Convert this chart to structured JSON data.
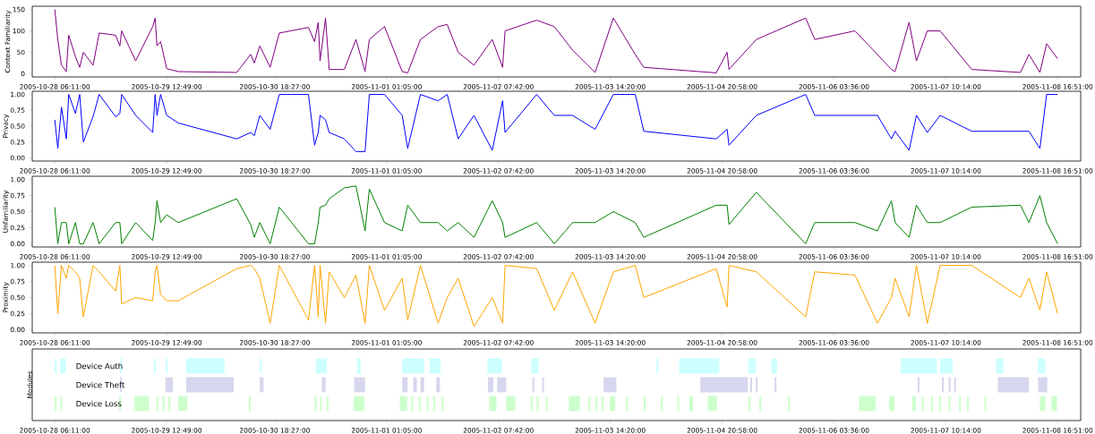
{
  "chart_data": [
    {
      "type": "line",
      "ylabel": "Context Familiarity",
      "xlim": [
        "2005-10-28T00:00",
        "2005-11-08T23:10"
      ],
      "ylim": [
        -7.5,
        157.5
      ],
      "yticks": [
        0,
        50,
        100,
        150
      ],
      "xticks": [
        {
          "value": "2005-10-28T06:11",
          "label": "2005-10-28 06:11:00"
        },
        {
          "value": "2005-10-29T12:49",
          "label": "2005-10-29 12:49:00"
        },
        {
          "value": "2005-10-30T18:27",
          "label": "2005-10-30 18:27:00"
        },
        {
          "value": "2005-11-01T01:05",
          "label": "2005-11-01 01:05:00"
        },
        {
          "value": "2005-11-02T07:42",
          "label": "2005-11-02 07:42:00"
        },
        {
          "value": "2005-11-03T14:20",
          "label": "2005-11-03 14:20:00"
        },
        {
          "value": "2005-11-04T20:58",
          "label": "2005-11-04 20:58:00"
        },
        {
          "value": "2005-11-06T03:36",
          "label": "2005-11-06 03:36:00"
        },
        {
          "value": "2005-11-07T10:14",
          "label": "2005-11-07 10:14:00"
        },
        {
          "value": "2005-11-08T16:51",
          "label": "2005-11-08 16:51:00"
        }
      ],
      "x": [
        "2005-10-28T06:11",
        "2005-10-28T07:00",
        "2005-10-28T08:00",
        "2005-10-28T09:20",
        "2005-10-28T10:00",
        "2005-10-28T11:50",
        "2005-10-28T13:00",
        "2005-10-28T14:00",
        "2005-10-28T16:40",
        "2005-10-28T18:20",
        "2005-10-28T22:50",
        "2005-10-29T00:00",
        "2005-10-29T00:30",
        "2005-10-29T04:20",
        "2005-10-29T09:00",
        "2005-10-29T09:40",
        "2005-10-29T10:10",
        "2005-10-29T11:10",
        "2005-10-29T12:50",
        "2005-10-29T16:00",
        "2005-10-30T08:00",
        "2005-10-30T11:50",
        "2005-10-30T12:50",
        "2005-10-30T14:20",
        "2005-10-30T17:10",
        "2005-10-30T19:40",
        "2005-10-31T03:40",
        "2005-10-31T05:20",
        "2005-10-31T06:20",
        "2005-10-31T06:50",
        "2005-10-31T08:20",
        "2005-10-31T09:20",
        "2005-10-31T13:30",
        "2005-10-31T16:40",
        "2005-10-31T19:10",
        "2005-10-31T20:20",
        "2005-11-01T00:30",
        "2005-11-01T05:20",
        "2005-11-01T06:50",
        "2005-11-01T10:20",
        "2005-11-01T15:10",
        "2005-11-01T17:40",
        "2005-11-01T20:40",
        "2005-11-02T01:00",
        "2005-11-02T06:00",
        "2005-11-02T08:50",
        "2005-11-02T09:30",
        "2005-11-02T18:10",
        "2005-11-02T23:00",
        "2005-11-03T04:00",
        "2005-11-03T10:10",
        "2005-11-03T15:10",
        "2005-11-03T21:10",
        "2005-11-03T23:30",
        "2005-11-04T19:20",
        "2005-11-04T22:20",
        "2005-11-04T22:50",
        "2005-11-05T06:20",
        "2005-11-05T19:50",
        "2005-11-05T22:20",
        "2005-11-06T09:20",
        "2005-11-06T15:30",
        "2005-11-06T19:20",
        "2005-11-06T20:20",
        "2005-11-07T00:10",
        "2005-11-07T02:10",
        "2005-11-07T05:10",
        "2005-11-07T08:40",
        "2005-11-07T17:20",
        "2005-11-08T06:40",
        "2005-11-08T09:00",
        "2005-11-08T12:00",
        "2005-11-08T13:50",
        "2005-11-08T16:51"
      ],
      "series": [
        {
          "color": "#800080",
          "values": [
            150,
            80,
            20,
            5,
            90,
            40,
            15,
            50,
            20,
            95,
            90,
            65,
            100,
            30,
            110,
            130,
            65,
            75,
            12,
            5,
            3,
            45,
            25,
            65,
            15,
            95,
            108,
            75,
            120,
            30,
            130,
            10,
            10,
            80,
            5,
            80,
            110,
            5,
            2,
            80,
            110,
            115,
            50,
            20,
            80,
            15,
            100,
            125,
            110,
            55,
            3,
            130,
            45,
            15,
            2,
            50,
            10,
            80,
            130,
            80,
            100,
            45,
            10,
            5,
            120,
            30,
            100,
            100,
            10,
            3,
            45,
            3,
            70,
            35
          ]
        }
      ]
    },
    {
      "type": "line",
      "ylabel": "Privacy",
      "xlim": [
        "2005-10-28T00:00",
        "2005-11-08T23:10"
      ],
      "ylim": [
        -0.05,
        1.05
      ],
      "yticks": [
        {
          "value": 0,
          "label": "0.00"
        },
        {
          "value": 0.25,
          "label": "0.25"
        },
        {
          "value": 0.5,
          "label": "0.50"
        },
        {
          "value": 0.75,
          "label": "0.75"
        },
        {
          "value": 1,
          "label": "1.00"
        }
      ],
      "xticks": [
        {
          "value": "2005-10-28T06:11",
          "label": "2005-10-28 06:11:00"
        },
        {
          "value": "2005-10-29T12:49",
          "label": "2005-10-29 12:49:00"
        },
        {
          "value": "2005-10-30T18:27",
          "label": "2005-10-30 18:27:00"
        },
        {
          "value": "2005-11-01T01:05",
          "label": "2005-11-01 01:05:00"
        },
        {
          "value": "2005-11-02T07:42",
          "label": "2005-11-02 07:42:00"
        },
        {
          "value": "2005-11-03T14:20",
          "label": "2005-11-03 14:20:00"
        },
        {
          "value": "2005-11-04T20:58",
          "label": "2005-11-04 20:58:00"
        },
        {
          "value": "2005-11-06T03:36",
          "label": "2005-11-06 03:36:00"
        },
        {
          "value": "2005-11-07T10:14",
          "label": "2005-11-07 10:14:00"
        },
        {
          "value": "2005-11-08T16:51",
          "label": "2005-11-08 16:51:00"
        }
      ],
      "x": [
        "2005-10-28T06:11",
        "2005-10-28T07:00",
        "2005-10-28T08:00",
        "2005-10-28T09:20",
        "2005-10-28T10:00",
        "2005-10-28T11:50",
        "2005-10-28T13:00",
        "2005-10-28T14:00",
        "2005-10-28T16:40",
        "2005-10-28T18:20",
        "2005-10-28T22:50",
        "2005-10-29T00:00",
        "2005-10-29T00:30",
        "2005-10-29T04:20",
        "2005-10-29T09:00",
        "2005-10-29T09:40",
        "2005-10-29T10:10",
        "2005-10-29T11:10",
        "2005-10-29T12:50",
        "2005-10-29T16:00",
        "2005-10-30T08:00",
        "2005-10-30T11:50",
        "2005-10-30T12:50",
        "2005-10-30T14:20",
        "2005-10-30T17:10",
        "2005-10-30T19:40",
        "2005-10-31T03:40",
        "2005-10-31T05:20",
        "2005-10-31T06:20",
        "2005-10-31T06:50",
        "2005-10-31T08:20",
        "2005-10-31T09:20",
        "2005-10-31T13:30",
        "2005-10-31T16:40",
        "2005-10-31T19:10",
        "2005-10-31T20:20",
        "2005-11-01T00:30",
        "2005-11-01T05:20",
        "2005-11-01T06:50",
        "2005-11-01T10:20",
        "2005-11-01T15:10",
        "2005-11-01T17:40",
        "2005-11-01T20:40",
        "2005-11-02T01:00",
        "2005-11-02T06:00",
        "2005-11-02T08:50",
        "2005-11-02T09:30",
        "2005-11-02T18:10",
        "2005-11-02T23:00",
        "2005-11-03T04:00",
        "2005-11-03T10:10",
        "2005-11-03T15:10",
        "2005-11-03T21:10",
        "2005-11-03T23:30",
        "2005-11-04T19:20",
        "2005-11-04T22:20",
        "2005-11-04T22:50",
        "2005-11-05T06:20",
        "2005-11-05T19:50",
        "2005-11-05T22:20",
        "2005-11-06T09:20",
        "2005-11-06T15:30",
        "2005-11-06T19:20",
        "2005-11-06T20:20",
        "2005-11-07T00:10",
        "2005-11-07T02:10",
        "2005-11-07T05:10",
        "2005-11-07T08:40",
        "2005-11-07T17:20",
        "2005-11-08T06:40",
        "2005-11-08T09:00",
        "2005-11-08T12:00",
        "2005-11-08T13:50",
        "2005-11-08T16:51"
      ],
      "series": [
        {
          "color": "#0000ff",
          "values": [
            0.6,
            0.15,
            0.8,
            0.3,
            1.0,
            0.7,
            1.0,
            0.25,
            0.65,
            1.0,
            0.65,
            0.7,
            1.0,
            0.67,
            0.4,
            1.0,
            0.67,
            1.0,
            0.67,
            0.55,
            0.3,
            0.4,
            0.35,
            0.67,
            0.45,
            1.0,
            1.0,
            0.2,
            0.4,
            0.67,
            0.6,
            0.4,
            0.3,
            0.1,
            0.1,
            1.0,
            1.0,
            0.67,
            0.15,
            1.0,
            0.9,
            1.0,
            0.3,
            0.67,
            0.12,
            0.9,
            0.4,
            1.0,
            0.67,
            0.67,
            0.45,
            1.0,
            1.0,
            0.42,
            0.3,
            0.45,
            0.2,
            0.67,
            1.0,
            0.67,
            0.67,
            0.67,
            0.3,
            0.42,
            0.12,
            0.67,
            0.4,
            0.67,
            0.42,
            0.42,
            0.42,
            0.15,
            1.0,
            1.0
          ]
        }
      ]
    },
    {
      "type": "line",
      "ylabel": "Unfamiliarity",
      "xlim": [
        "2005-10-28T00:00",
        "2005-11-08T23:10"
      ],
      "ylim": [
        -0.05,
        1.05
      ],
      "yticks": [
        {
          "value": 0,
          "label": "0.00"
        },
        {
          "value": 0.25,
          "label": "0.25"
        },
        {
          "value": 0.5,
          "label": "0.50"
        },
        {
          "value": 0.75,
          "label": "0.75"
        },
        {
          "value": 1,
          "label": "1.00"
        }
      ],
      "xticks": [
        {
          "value": "2005-10-28T06:11",
          "label": "2005-10-28 06:11:00"
        },
        {
          "value": "2005-10-29T12:49",
          "label": "2005-10-29 12:49:00"
        },
        {
          "value": "2005-10-30T18:27",
          "label": "2005-10-30 18:27:00"
        },
        {
          "value": "2005-11-01T01:05",
          "label": "2005-11-01 01:05:00"
        },
        {
          "value": "2005-11-02T07:42",
          "label": "2005-11-02 07:42:00"
        },
        {
          "value": "2005-11-03T14:20",
          "label": "2005-11-03 14:20:00"
        },
        {
          "value": "2005-11-04T20:58",
          "label": "2005-11-04 20:58:00"
        },
        {
          "value": "2005-11-06T03:36",
          "label": "2005-11-06 03:36:00"
        },
        {
          "value": "2005-11-07T10:14",
          "label": "2005-11-07 10:14:00"
        },
        {
          "value": "2005-11-08T16:51",
          "label": "2005-11-08 16:51:00"
        }
      ],
      "x": [
        "2005-10-28T06:11",
        "2005-10-28T07:00",
        "2005-10-28T08:00",
        "2005-10-28T09:20",
        "2005-10-28T10:00",
        "2005-10-28T11:50",
        "2005-10-28T13:00",
        "2005-10-28T14:00",
        "2005-10-28T16:40",
        "2005-10-28T18:20",
        "2005-10-28T22:50",
        "2005-10-29T00:00",
        "2005-10-29T00:30",
        "2005-10-29T04:20",
        "2005-10-29T09:00",
        "2005-10-29T09:40",
        "2005-10-29T10:10",
        "2005-10-29T11:10",
        "2005-10-29T12:50",
        "2005-10-29T16:00",
        "2005-10-30T08:00",
        "2005-10-30T11:50",
        "2005-10-30T12:50",
        "2005-10-30T14:20",
        "2005-10-30T17:10",
        "2005-10-30T19:40",
        "2005-10-31T03:40",
        "2005-10-31T05:20",
        "2005-10-31T06:20",
        "2005-10-31T06:50",
        "2005-10-31T08:20",
        "2005-10-31T09:20",
        "2005-10-31T13:30",
        "2005-10-31T16:40",
        "2005-10-31T19:10",
        "2005-10-31T20:20",
        "2005-11-01T00:30",
        "2005-11-01T05:20",
        "2005-11-01T06:50",
        "2005-11-01T10:20",
        "2005-11-01T15:10",
        "2005-11-01T17:40",
        "2005-11-01T20:40",
        "2005-11-02T01:00",
        "2005-11-02T06:00",
        "2005-11-02T08:50",
        "2005-11-02T09:30",
        "2005-11-02T18:10",
        "2005-11-02T23:00",
        "2005-11-03T04:00",
        "2005-11-03T10:10",
        "2005-11-03T15:10",
        "2005-11-03T21:10",
        "2005-11-03T23:30",
        "2005-11-04T19:20",
        "2005-11-04T22:20",
        "2005-11-04T22:50",
        "2005-11-05T06:20",
        "2005-11-05T19:50",
        "2005-11-05T22:20",
        "2005-11-06T09:20",
        "2005-11-06T15:30",
        "2005-11-06T19:20",
        "2005-11-06T20:20",
        "2005-11-07T00:10",
        "2005-11-07T02:10",
        "2005-11-07T05:10",
        "2005-11-07T08:40",
        "2005-11-07T17:20",
        "2005-11-08T06:40",
        "2005-11-08T09:00",
        "2005-11-08T12:00",
        "2005-11-08T13:50",
        "2005-11-08T16:51"
      ],
      "series": [
        {
          "color": "#008000",
          "values": [
            0.57,
            0,
            0.33,
            0.33,
            0,
            0.33,
            0,
            0,
            0.33,
            0,
            0.33,
            0.33,
            0,
            0.33,
            0.05,
            0.33,
            0.67,
            0.33,
            0.45,
            0.33,
            0.7,
            0.3,
            0.1,
            0.33,
            0,
            0.57,
            0,
            0,
            0.33,
            0.57,
            0.6,
            0.7,
            0.87,
            0.9,
            0.2,
            0.85,
            0.33,
            0.2,
            0.6,
            0.33,
            0.33,
            0.2,
            0.33,
            0.1,
            0.67,
            0.33,
            0.1,
            0.33,
            0,
            0.33,
            0.33,
            0.5,
            0.33,
            0.1,
            0.6,
            0.6,
            0.3,
            0.8,
            0,
            0.33,
            0.33,
            0.2,
            0.67,
            0.33,
            0.1,
            0.6,
            0.33,
            0.33,
            0.57,
            0.6,
            0.33,
            0.75,
            0.33,
            0
          ]
        }
      ]
    },
    {
      "type": "line",
      "ylabel": "Proximity",
      "xlim": [
        "2005-10-28T00:00",
        "2005-11-08T23:10"
      ],
      "ylim": [
        -0.05,
        1.05
      ],
      "yticks": [
        {
          "value": 0,
          "label": "0.00"
        },
        {
          "value": 0.25,
          "label": "0.25"
        },
        {
          "value": 0.5,
          "label": "0.50"
        },
        {
          "value": 0.75,
          "label": "0.75"
        },
        {
          "value": 1,
          "label": "1.00"
        }
      ],
      "xticks": [
        {
          "value": "2005-10-28T06:11",
          "label": "2005-10-28 06:11:00"
        },
        {
          "value": "2005-10-29T12:49",
          "label": "2005-10-29 12:49:00"
        },
        {
          "value": "2005-10-30T18:27",
          "label": "2005-10-30 18:27:00"
        },
        {
          "value": "2005-11-01T01:05",
          "label": "2005-11-01 01:05:00"
        },
        {
          "value": "2005-11-02T07:42",
          "label": "2005-11-02 07:42:00"
        },
        {
          "value": "2005-11-03T14:20",
          "label": "2005-11-03 14:20:00"
        },
        {
          "value": "2005-11-04T20:58",
          "label": "2005-11-04 20:58:00"
        },
        {
          "value": "2005-11-06T03:36",
          "label": "2005-11-06 03:36:00"
        },
        {
          "value": "2005-11-07T10:14",
          "label": "2005-11-07 10:14:00"
        },
        {
          "value": "2005-11-08T16:51",
          "label": "2005-11-08 16:51:00"
        }
      ],
      "x": [
        "2005-10-28T06:11",
        "2005-10-28T07:00",
        "2005-10-28T08:00",
        "2005-10-28T09:20",
        "2005-10-28T10:00",
        "2005-10-28T11:50",
        "2005-10-28T13:00",
        "2005-10-28T14:00",
        "2005-10-28T16:40",
        "2005-10-28T18:20",
        "2005-10-28T22:50",
        "2005-10-29T00:00",
        "2005-10-29T00:30",
        "2005-10-29T04:20",
        "2005-10-29T09:00",
        "2005-10-29T09:40",
        "2005-10-29T10:10",
        "2005-10-29T11:10",
        "2005-10-29T12:50",
        "2005-10-29T16:00",
        "2005-10-30T08:00",
        "2005-10-30T11:50",
        "2005-10-30T12:50",
        "2005-10-30T14:20",
        "2005-10-30T17:10",
        "2005-10-30T19:40",
        "2005-10-31T03:40",
        "2005-10-31T05:20",
        "2005-10-31T06:20",
        "2005-10-31T06:50",
        "2005-10-31T08:20",
        "2005-10-31T09:20",
        "2005-10-31T13:30",
        "2005-10-31T16:40",
        "2005-10-31T19:10",
        "2005-10-31T20:20",
        "2005-11-01T00:30",
        "2005-11-01T05:20",
        "2005-11-01T06:50",
        "2005-11-01T10:20",
        "2005-11-01T15:10",
        "2005-11-01T17:40",
        "2005-11-01T20:40",
        "2005-11-02T01:00",
        "2005-11-02T06:00",
        "2005-11-02T08:50",
        "2005-11-02T09:30",
        "2005-11-02T18:10",
        "2005-11-02T23:00",
        "2005-11-03T04:00",
        "2005-11-03T10:10",
        "2005-11-03T15:10",
        "2005-11-03T21:10",
        "2005-11-03T23:30",
        "2005-11-04T19:20",
        "2005-11-04T22:20",
        "2005-11-04T22:50",
        "2005-11-05T06:20",
        "2005-11-05T19:50",
        "2005-11-05T22:20",
        "2005-11-06T09:20",
        "2005-11-06T15:30",
        "2005-11-06T19:20",
        "2005-11-06T20:20",
        "2005-11-07T00:10",
        "2005-11-07T02:10",
        "2005-11-07T05:10",
        "2005-11-07T08:40",
        "2005-11-07T17:20",
        "2005-11-08T06:40",
        "2005-11-08T09:00",
        "2005-11-08T12:00",
        "2005-11-08T13:50",
        "2005-11-08T16:51"
      ],
      "series": [
        {
          "color": "#ffa500",
          "values": [
            1.0,
            0.25,
            1.0,
            0.8,
            1.0,
            0.9,
            0.8,
            0.2,
            1.0,
            0.9,
            0.6,
            1.0,
            0.4,
            0.5,
            0.45,
            0.9,
            1.0,
            0.55,
            0.45,
            0.45,
            0.95,
            1.0,
            0.95,
            0.8,
            0.1,
            1.0,
            0.15,
            1.0,
            0.2,
            1.0,
            0.1,
            0.9,
            0.5,
            0.85,
            0.1,
            1.0,
            0.3,
            0.8,
            0.15,
            1.0,
            0.1,
            0.5,
            0.8,
            0.05,
            0.5,
            0.1,
            1.0,
            0.95,
            0.3,
            0.9,
            0.1,
            0.9,
            1.0,
            0.5,
            0.95,
            0.35,
            1.0,
            0.9,
            0.2,
            0.9,
            0.85,
            0.1,
            0.5,
            0.8,
            0.2,
            1.0,
            0.1,
            1.0,
            1.0,
            0.5,
            0.8,
            0.3,
            0.9,
            0.25
          ]
        }
      ]
    },
    {
      "type": "bar",
      "orientation": "horizontal",
      "ylabel": "Modules",
      "tick_labels": "x",
      "categories": [
        "Device Auth",
        "Device Theft",
        "Device Loss"
      ],
      "colors": [
        "#ccffff",
        "#d6d6ee",
        "#ccffcc"
      ],
      "xlim": [
        "2005-10-28T00:00",
        "2005-11-08T23:10"
      ],
      "xticks": [
        {
          "value": "2005-10-28T06:11",
          "label": "2005-10-28 06:11:00"
        },
        {
          "value": "2005-10-29T12:49",
          "label": "2005-10-29 12:49:00"
        },
        {
          "value": "2005-10-30T18:27",
          "label": "2005-10-30 18:27:00"
        },
        {
          "value": "2005-11-01T01:05",
          "label": "2005-11-01 01:05:00"
        },
        {
          "value": "2005-11-02T07:42",
          "label": "2005-11-02 07:42:00"
        },
        {
          "value": "2005-11-03T14:20",
          "label": "2005-11-03 14:20:00"
        },
        {
          "value": "2005-11-04T20:58",
          "label": "2005-11-04 20:58:00"
        },
        {
          "value": "2005-11-06T03:36",
          "label": "2005-11-06 03:36:00"
        },
        {
          "value": "2005-11-07T10:14",
          "label": "2005-11-07 10:14:00"
        },
        {
          "value": "2005-11-08T16:51",
          "label": "2005-11-08 16:51:00"
        }
      ],
      "bands": [
        {
          "axis": "x",
          "color": "#ccffff",
          "from": "2005-10-28T06:10",
          "to": "2005-10-28T06:40"
        },
        {
          "axis": "x",
          "color": "#ccffff",
          "from": "2005-10-28T07:40",
          "to": "2005-10-28T09:10"
        },
        {
          "axis": "x",
          "color": "#ccffff",
          "from": "2005-10-29T00:00",
          "to": "2005-10-29T00:30"
        },
        {
          "axis": "x",
          "color": "#ccffff",
          "from": "2005-10-29T09:20",
          "to": "2005-10-29T09:50"
        },
        {
          "axis": "x",
          "color": "#ccffff",
          "from": "2005-10-29T12:30",
          "to": "2005-10-29T13:00"
        },
        {
          "axis": "x",
          "color": "#ccffff",
          "from": "2005-10-29T18:10",
          "to": "2005-10-30T04:40"
        },
        {
          "axis": "x",
          "color": "#ccffff",
          "from": "2005-10-30T14:20",
          "to": "2005-10-30T14:50"
        },
        {
          "axis": "x",
          "color": "#ccffff",
          "from": "2005-10-31T05:40",
          "to": "2005-10-31T08:40"
        },
        {
          "axis": "x",
          "color": "#ccffff",
          "from": "2005-10-31T17:00",
          "to": "2005-10-31T18:00"
        },
        {
          "axis": "x",
          "color": "#ccffff",
          "from": "2005-11-01T05:20",
          "to": "2005-11-01T11:20"
        },
        {
          "axis": "x",
          "color": "#ccffff",
          "from": "2005-11-01T12:50",
          "to": "2005-11-01T15:50"
        },
        {
          "axis": "x",
          "color": "#ccffff",
          "from": "2005-11-02T04:40",
          "to": "2005-11-02T08:40"
        },
        {
          "axis": "x",
          "color": "#ccffff",
          "from": "2005-11-02T16:40",
          "to": "2005-11-02T18:40"
        },
        {
          "axis": "x",
          "color": "#ccffff",
          "from": "2005-11-04T03:00",
          "to": "2005-11-04T03:30"
        },
        {
          "axis": "x",
          "color": "#ccffff",
          "from": "2005-11-04T09:10",
          "to": "2005-11-04T20:10"
        },
        {
          "axis": "x",
          "color": "#ccffff",
          "from": "2005-11-05T04:10",
          "to": "2005-11-05T06:10"
        },
        {
          "axis": "x",
          "color": "#ccffff",
          "from": "2005-11-05T10:30",
          "to": "2005-11-05T12:00"
        },
        {
          "axis": "x",
          "color": "#ccffff",
          "from": "2005-11-06T21:50",
          "to": "2005-11-07T07:50"
        },
        {
          "axis": "x",
          "color": "#ccffff",
          "from": "2005-11-07T08:40",
          "to": "2005-11-07T12:10"
        },
        {
          "axis": "x",
          "color": "#ccffff",
          "from": "2005-11-08T00:00",
          "to": "2005-11-08T02:00"
        },
        {
          "axis": "x",
          "color": "#ccffff",
          "from": "2005-11-08T11:30",
          "to": "2005-11-08T13:30"
        },
        {
          "axis": "x",
          "color": "#d6d6ee",
          "from": "2005-10-29T00:00",
          "to": "2005-10-29T00:30"
        },
        {
          "axis": "x",
          "color": "#d6d6ee",
          "from": "2005-10-29T12:30",
          "to": "2005-10-29T14:30"
        },
        {
          "axis": "x",
          "color": "#d6d6ee",
          "from": "2005-10-29T18:10",
          "to": "2005-10-30T07:10"
        },
        {
          "axis": "x",
          "color": "#d6d6ee",
          "from": "2005-10-30T14:20",
          "to": "2005-10-30T15:20"
        },
        {
          "axis": "x",
          "color": "#d6d6ee",
          "from": "2005-10-31T07:20",
          "to": "2005-10-31T08:20"
        },
        {
          "axis": "x",
          "color": "#d6d6ee",
          "from": "2005-10-31T16:10",
          "to": "2005-10-31T19:10"
        },
        {
          "axis": "x",
          "color": "#d6d6ee",
          "from": "2005-11-01T05:20",
          "to": "2005-11-01T06:50"
        },
        {
          "axis": "x",
          "color": "#d6d6ee",
          "from": "2005-11-01T08:20",
          "to": "2005-11-01T09:20"
        },
        {
          "axis": "x",
          "color": "#d6d6ee",
          "from": "2005-11-01T10:20",
          "to": "2005-11-01T11:20"
        },
        {
          "axis": "x",
          "color": "#d6d6ee",
          "from": "2005-11-01T14:40",
          "to": "2005-11-01T15:40"
        },
        {
          "axis": "x",
          "color": "#d6d6ee",
          "from": "2005-11-02T04:50",
          "to": "2005-11-02T06:20"
        },
        {
          "axis": "x",
          "color": "#d6d6ee",
          "from": "2005-11-02T07:20",
          "to": "2005-11-02T09:50"
        },
        {
          "axis": "x",
          "color": "#d6d6ee",
          "from": "2005-11-02T17:00",
          "to": "2005-11-02T17:30"
        },
        {
          "axis": "x",
          "color": "#d6d6ee",
          "from": "2005-11-02T19:40",
          "to": "2005-11-02T20:10"
        },
        {
          "axis": "x",
          "color": "#d6d6ee",
          "from": "2005-11-03T12:30",
          "to": "2005-11-03T16:00"
        },
        {
          "axis": "x",
          "color": "#d6d6ee",
          "from": "2005-11-04T15:00",
          "to": "2005-11-05T04:00"
        },
        {
          "axis": "x",
          "color": "#d6d6ee",
          "from": "2005-11-05T04:40",
          "to": "2005-11-05T05:10"
        },
        {
          "axis": "x",
          "color": "#d6d6ee",
          "from": "2005-11-05T06:10",
          "to": "2005-11-05T06:40"
        },
        {
          "axis": "x",
          "color": "#d6d6ee",
          "from": "2005-11-05T11:20",
          "to": "2005-11-05T11:50"
        },
        {
          "axis": "x",
          "color": "#d6d6ee",
          "from": "2005-11-07T02:30",
          "to": "2005-11-07T03:00"
        },
        {
          "axis": "x",
          "color": "#d6d6ee",
          "from": "2005-11-07T09:10",
          "to": "2005-11-07T09:40"
        },
        {
          "axis": "x",
          "color": "#d6d6ee",
          "from": "2005-11-07T11:00",
          "to": "2005-11-07T11:30"
        },
        {
          "axis": "x",
          "color": "#d6d6ee",
          "from": "2005-11-07T12:30",
          "to": "2005-11-07T13:00"
        },
        {
          "axis": "x",
          "color": "#d6d6ee",
          "from": "2005-11-08T00:30",
          "to": "2005-11-08T09:00"
        },
        {
          "axis": "x",
          "color": "#d6d6ee",
          "from": "2005-11-08T11:30",
          "to": "2005-11-08T14:00"
        },
        {
          "axis": "x",
          "color": "#ccffcc",
          "from": "2005-10-28T06:10",
          "to": "2005-10-28T06:40"
        },
        {
          "axis": "x",
          "color": "#ccffcc",
          "from": "2005-10-28T07:40",
          "to": "2005-10-28T08:10"
        },
        {
          "axis": "x",
          "color": "#ccffcc",
          "from": "2005-10-28T23:50",
          "to": "2005-10-29T00:20"
        },
        {
          "axis": "x",
          "color": "#ccffcc",
          "from": "2005-10-29T04:00",
          "to": "2005-10-29T08:00"
        },
        {
          "axis": "x",
          "color": "#ccffcc",
          "from": "2005-10-29T10:00",
          "to": "2005-10-29T10:30"
        },
        {
          "axis": "x",
          "color": "#ccffcc",
          "from": "2005-10-29T11:40",
          "to": "2005-10-29T12:10"
        },
        {
          "axis": "x",
          "color": "#ccffcc",
          "from": "2005-10-29T13:20",
          "to": "2005-10-29T13:50"
        },
        {
          "axis": "x",
          "color": "#ccffcc",
          "from": "2005-10-29T16:00",
          "to": "2005-10-29T18:30"
        },
        {
          "axis": "x",
          "color": "#ccffcc",
          "from": "2005-10-30T11:20",
          "to": "2005-10-30T11:50"
        },
        {
          "axis": "x",
          "color": "#ccffcc",
          "from": "2005-10-31T05:20",
          "to": "2005-10-31T05:50"
        },
        {
          "axis": "x",
          "color": "#ccffcc",
          "from": "2005-10-31T06:50",
          "to": "2005-10-31T07:20"
        },
        {
          "axis": "x",
          "color": "#ccffcc",
          "from": "2005-10-31T08:40",
          "to": "2005-10-31T09:10"
        },
        {
          "axis": "x",
          "color": "#ccffcc",
          "from": "2005-10-31T16:00",
          "to": "2005-10-31T19:00"
        },
        {
          "axis": "x",
          "color": "#ccffcc",
          "from": "2005-11-01T04:40",
          "to": "2005-11-01T06:40"
        },
        {
          "axis": "x",
          "color": "#ccffcc",
          "from": "2005-11-01T07:50",
          "to": "2005-11-01T08:20"
        },
        {
          "axis": "x",
          "color": "#ccffcc",
          "from": "2005-11-01T09:50",
          "to": "2005-11-01T10:20"
        },
        {
          "axis": "x",
          "color": "#ccffcc",
          "from": "2005-11-01T12:00",
          "to": "2005-11-01T12:30"
        },
        {
          "axis": "x",
          "color": "#ccffcc",
          "from": "2005-11-01T13:50",
          "to": "2005-11-01T14:20"
        },
        {
          "axis": "x",
          "color": "#ccffcc",
          "from": "2005-11-01T16:10",
          "to": "2005-11-01T16:40"
        },
        {
          "axis": "x",
          "color": "#ccffcc",
          "from": "2005-11-02T05:10",
          "to": "2005-11-02T07:10"
        },
        {
          "axis": "x",
          "color": "#ccffcc",
          "from": "2005-11-02T09:50",
          "to": "2005-11-02T12:20"
        },
        {
          "axis": "x",
          "color": "#ccffcc",
          "from": "2005-11-02T16:30",
          "to": "2005-11-02T17:00"
        },
        {
          "axis": "x",
          "color": "#ccffcc",
          "from": "2005-11-02T18:10",
          "to": "2005-11-02T18:40"
        },
        {
          "axis": "x",
          "color": "#ccffcc",
          "from": "2005-11-02T20:40",
          "to": "2005-11-02T21:10"
        },
        {
          "axis": "x",
          "color": "#ccffcc",
          "from": "2005-11-03T03:00",
          "to": "2005-11-03T06:00"
        },
        {
          "axis": "x",
          "color": "#ccffcc",
          "from": "2005-11-03T08:20",
          "to": "2005-11-03T08:50"
        },
        {
          "axis": "x",
          "color": "#ccffcc",
          "from": "2005-11-03T10:20",
          "to": "2005-11-03T10:50"
        },
        {
          "axis": "x",
          "color": "#ccffcc",
          "from": "2005-11-03T12:00",
          "to": "2005-11-03T12:30"
        },
        {
          "axis": "x",
          "color": "#ccffcc",
          "from": "2005-11-03T14:10",
          "to": "2005-11-03T15:40"
        },
        {
          "axis": "x",
          "color": "#ccffcc",
          "from": "2005-11-03T18:40",
          "to": "2005-11-03T19:10"
        },
        {
          "axis": "x",
          "color": "#ccffcc",
          "from": "2005-11-03T23:30",
          "to": "2005-11-04T00:00"
        },
        {
          "axis": "x",
          "color": "#ccffcc",
          "from": "2005-11-04T04:10",
          "to": "2005-11-04T04:40"
        },
        {
          "axis": "x",
          "color": "#ccffcc",
          "from": "2005-11-04T08:40",
          "to": "2005-11-04T09:10"
        },
        {
          "axis": "x",
          "color": "#ccffcc",
          "from": "2005-11-04T12:00",
          "to": "2005-11-04T13:00"
        },
        {
          "axis": "x",
          "color": "#ccffcc",
          "from": "2005-11-04T17:00",
          "to": "2005-11-04T19:30"
        },
        {
          "axis": "x",
          "color": "#ccffcc",
          "from": "2005-11-05T04:10",
          "to": "2005-11-05T04:40"
        },
        {
          "axis": "x",
          "color": "#ccffcc",
          "from": "2005-11-05T07:10",
          "to": "2005-11-05T07:40"
        },
        {
          "axis": "x",
          "color": "#ccffcc",
          "from": "2005-11-05T15:00",
          "to": "2005-11-05T15:30"
        },
        {
          "axis": "x",
          "color": "#ccffcc",
          "from": "2005-11-06T10:30",
          "to": "2005-11-06T15:00"
        },
        {
          "axis": "x",
          "color": "#ccffcc",
          "from": "2005-11-06T18:40",
          "to": "2005-11-06T20:10"
        },
        {
          "axis": "x",
          "color": "#ccffcc",
          "from": "2005-11-07T01:00",
          "to": "2005-11-07T02:00"
        },
        {
          "axis": "x",
          "color": "#ccffcc",
          "from": "2005-11-07T03:40",
          "to": "2005-11-07T04:10"
        },
        {
          "axis": "x",
          "color": "#ccffcc",
          "from": "2005-11-07T06:10",
          "to": "2005-11-07T06:40"
        },
        {
          "axis": "x",
          "color": "#ccffcc",
          "from": "2005-11-07T08:20",
          "to": "2005-11-07T08:50"
        },
        {
          "axis": "x",
          "color": "#ccffcc",
          "from": "2005-11-07T11:00",
          "to": "2005-11-07T11:30"
        },
        {
          "axis": "x",
          "color": "#ccffcc",
          "from": "2005-11-07T13:50",
          "to": "2005-11-07T14:20"
        },
        {
          "axis": "x",
          "color": "#ccffcc",
          "from": "2005-11-07T16:00",
          "to": "2005-11-07T16:30"
        },
        {
          "axis": "x",
          "color": "#ccffcc",
          "from": "2005-11-07T20:50",
          "to": "2005-11-07T21:20"
        },
        {
          "axis": "x",
          "color": "#ccffcc",
          "from": "2005-11-08T12:00",
          "to": "2005-11-08T13:30"
        },
        {
          "axis": "x",
          "color": "#ccffcc",
          "from": "2005-11-08T15:10",
          "to": "2005-11-08T16:40"
        }
      ]
    }
  ]
}
